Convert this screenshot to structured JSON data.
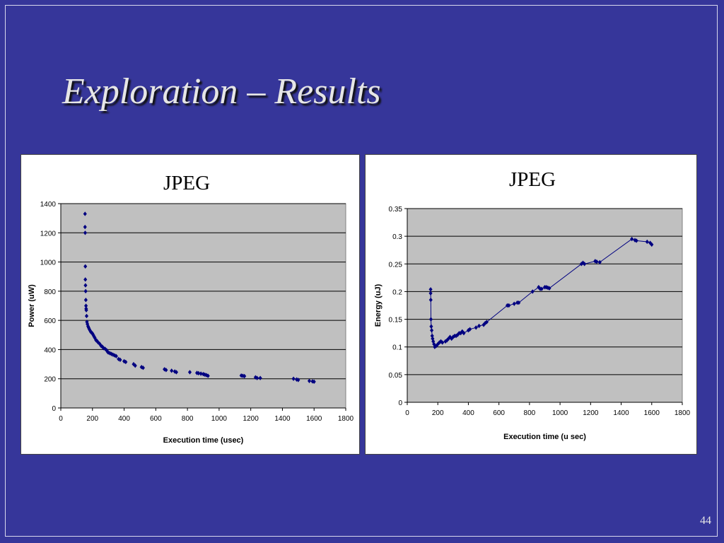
{
  "slide": {
    "title": "Exploration – Results",
    "number": "44",
    "background_color": "#36369a"
  },
  "chart_data": [
    {
      "type": "scatter",
      "title": "JPEG",
      "xlabel": "Execution time (usec)",
      "ylabel": "Power (uW)",
      "xlim": [
        0,
        1800
      ],
      "ylim": [
        0,
        1400
      ],
      "xticks": [
        0,
        200,
        400,
        600,
        800,
        1000,
        1200,
        1400,
        1600,
        1800
      ],
      "yticks": [
        0,
        200,
        400,
        600,
        800,
        1000,
        1200,
        1400
      ],
      "grid": true,
      "plot_background": "#c0c0c0",
      "marker_color": "#000080",
      "x": [
        153,
        153,
        154,
        155,
        155,
        156,
        157,
        158,
        159,
        160,
        161,
        163,
        165,
        168,
        172,
        176,
        180,
        185,
        190,
        196,
        200,
        205,
        210,
        215,
        222,
        228,
        235,
        245,
        255,
        262,
        270,
        280,
        290,
        295,
        300,
        310,
        320,
        330,
        340,
        350,
        365,
        375,
        400,
        410,
        460,
        470,
        510,
        520,
        655,
        665,
        700,
        720,
        730,
        815,
        860,
        870,
        885,
        900,
        910,
        920,
        930,
        1140,
        1150,
        1160,
        1230,
        1240,
        1260,
        1470,
        1490,
        1500,
        1570,
        1590,
        1600
      ],
      "y": [
        1330,
        1240,
        1200,
        970,
        880,
        840,
        800,
        740,
        700,
        680,
        670,
        630,
        590,
        575,
        560,
        550,
        540,
        530,
        520,
        515,
        510,
        500,
        490,
        480,
        465,
        460,
        450,
        440,
        425,
        420,
        410,
        405,
        395,
        385,
        380,
        375,
        370,
        365,
        360,
        355,
        335,
        330,
        320,
        315,
        300,
        290,
        280,
        275,
        265,
        260,
        255,
        250,
        245,
        245,
        240,
        238,
        235,
        232,
        228,
        225,
        220,
        222,
        220,
        218,
        210,
        205,
        205,
        200,
        195,
        192,
        185,
        182,
        180
      ]
    },
    {
      "type": "line",
      "title": "JPEG",
      "xlabel": "Execution time (u sec)",
      "ylabel": "Energy (uJ)",
      "xlim": [
        0,
        1800
      ],
      "ylim": [
        0,
        0.35
      ],
      "xticks": [
        0,
        200,
        400,
        600,
        800,
        1000,
        1200,
        1400,
        1600,
        1800
      ],
      "yticks": [
        "0",
        "0.05",
        "0.1",
        "0.15",
        "0.2",
        "0.25",
        "0.3",
        "0.35"
      ],
      "grid": true,
      "plot_background": "#c0c0c0",
      "line_color": "#000080",
      "x": [
        153,
        153,
        154,
        155,
        157,
        160,
        163,
        166,
        170,
        175,
        180,
        190,
        200,
        210,
        220,
        230,
        250,
        260,
        270,
        280,
        290,
        300,
        310,
        320,
        330,
        340,
        350,
        360,
        370,
        400,
        410,
        450,
        470,
        500,
        510,
        520,
        655,
        665,
        700,
        720,
        730,
        820,
        860,
        870,
        880,
        900,
        910,
        920,
        930,
        1140,
        1150,
        1160,
        1230,
        1240,
        1260,
        1470,
        1490,
        1500,
        1570,
        1590,
        1600
      ],
      "y": [
        0.204,
        0.197,
        0.185,
        0.15,
        0.137,
        0.13,
        0.12,
        0.115,
        0.11,
        0.105,
        0.1,
        0.102,
        0.105,
        0.108,
        0.11,
        0.108,
        0.11,
        0.112,
        0.115,
        0.118,
        0.115,
        0.118,
        0.12,
        0.12,
        0.122,
        0.125,
        0.125,
        0.128,
        0.125,
        0.13,
        0.132,
        0.135,
        0.138,
        0.14,
        0.143,
        0.145,
        0.175,
        0.175,
        0.178,
        0.18,
        0.18,
        0.2,
        0.208,
        0.205,
        0.205,
        0.208,
        0.208,
        0.207,
        0.206,
        0.25,
        0.252,
        0.25,
        0.255,
        0.254,
        0.253,
        0.295,
        0.293,
        0.292,
        0.29,
        0.288,
        0.285
      ]
    }
  ]
}
